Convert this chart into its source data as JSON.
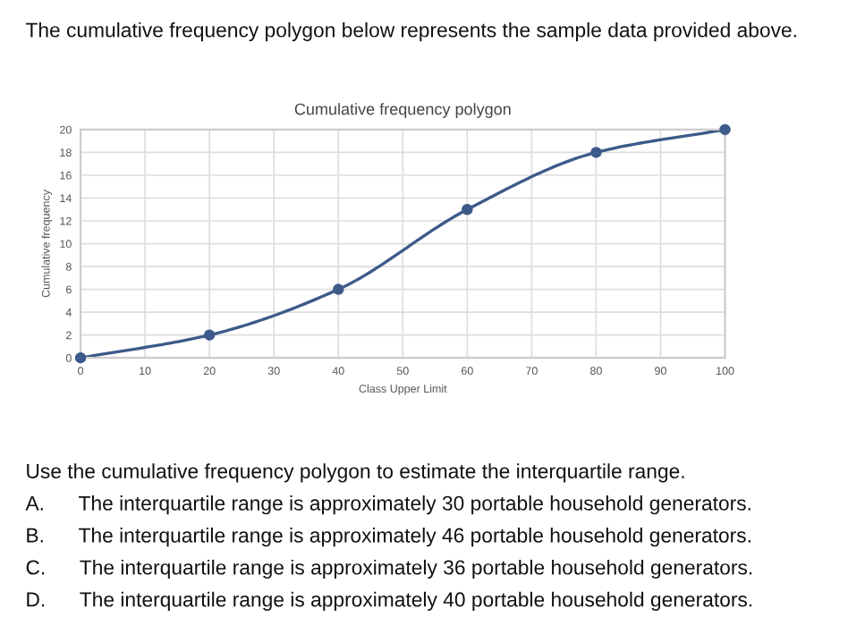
{
  "chart_data": {
    "type": "line",
    "title": "Cumulative frequency polygon",
    "xlabel": "Class Upper Limit",
    "ylabel": "Cumulative frequency",
    "x": [
      0,
      20,
      40,
      60,
      80,
      100
    ],
    "series": [
      {
        "color": "#3d5a8a",
        "values": [
          0,
          2,
          6,
          13,
          18,
          20
        ]
      }
    ],
    "xlim": [
      0,
      100
    ],
    "xticks": [
      0,
      10,
      20,
      30,
      40,
      50,
      60,
      70,
      80,
      90,
      100
    ],
    "ylim": [
      0,
      20
    ],
    "yticks": [
      0,
      2,
      4,
      6,
      8,
      10,
      12,
      14,
      16,
      18,
      20
    ],
    "grid": true,
    "marker": "circle",
    "line_style": "solid",
    "annotations": [
      "The cumulative frequency polygon below represents the sample data provided above.",
      "Use the cumulative frequency polygon to estimate the interquartile range.",
      "A.      The interquartile range is approximately 30 portable household generators.",
      "B.      The interquartile range is approximately 46 portable household generators.",
      "C.      The interquartile range is approximately 36 portable household generators.",
      "D.      The interquartile range is approximately 40 portable household generators."
    ]
  }
}
